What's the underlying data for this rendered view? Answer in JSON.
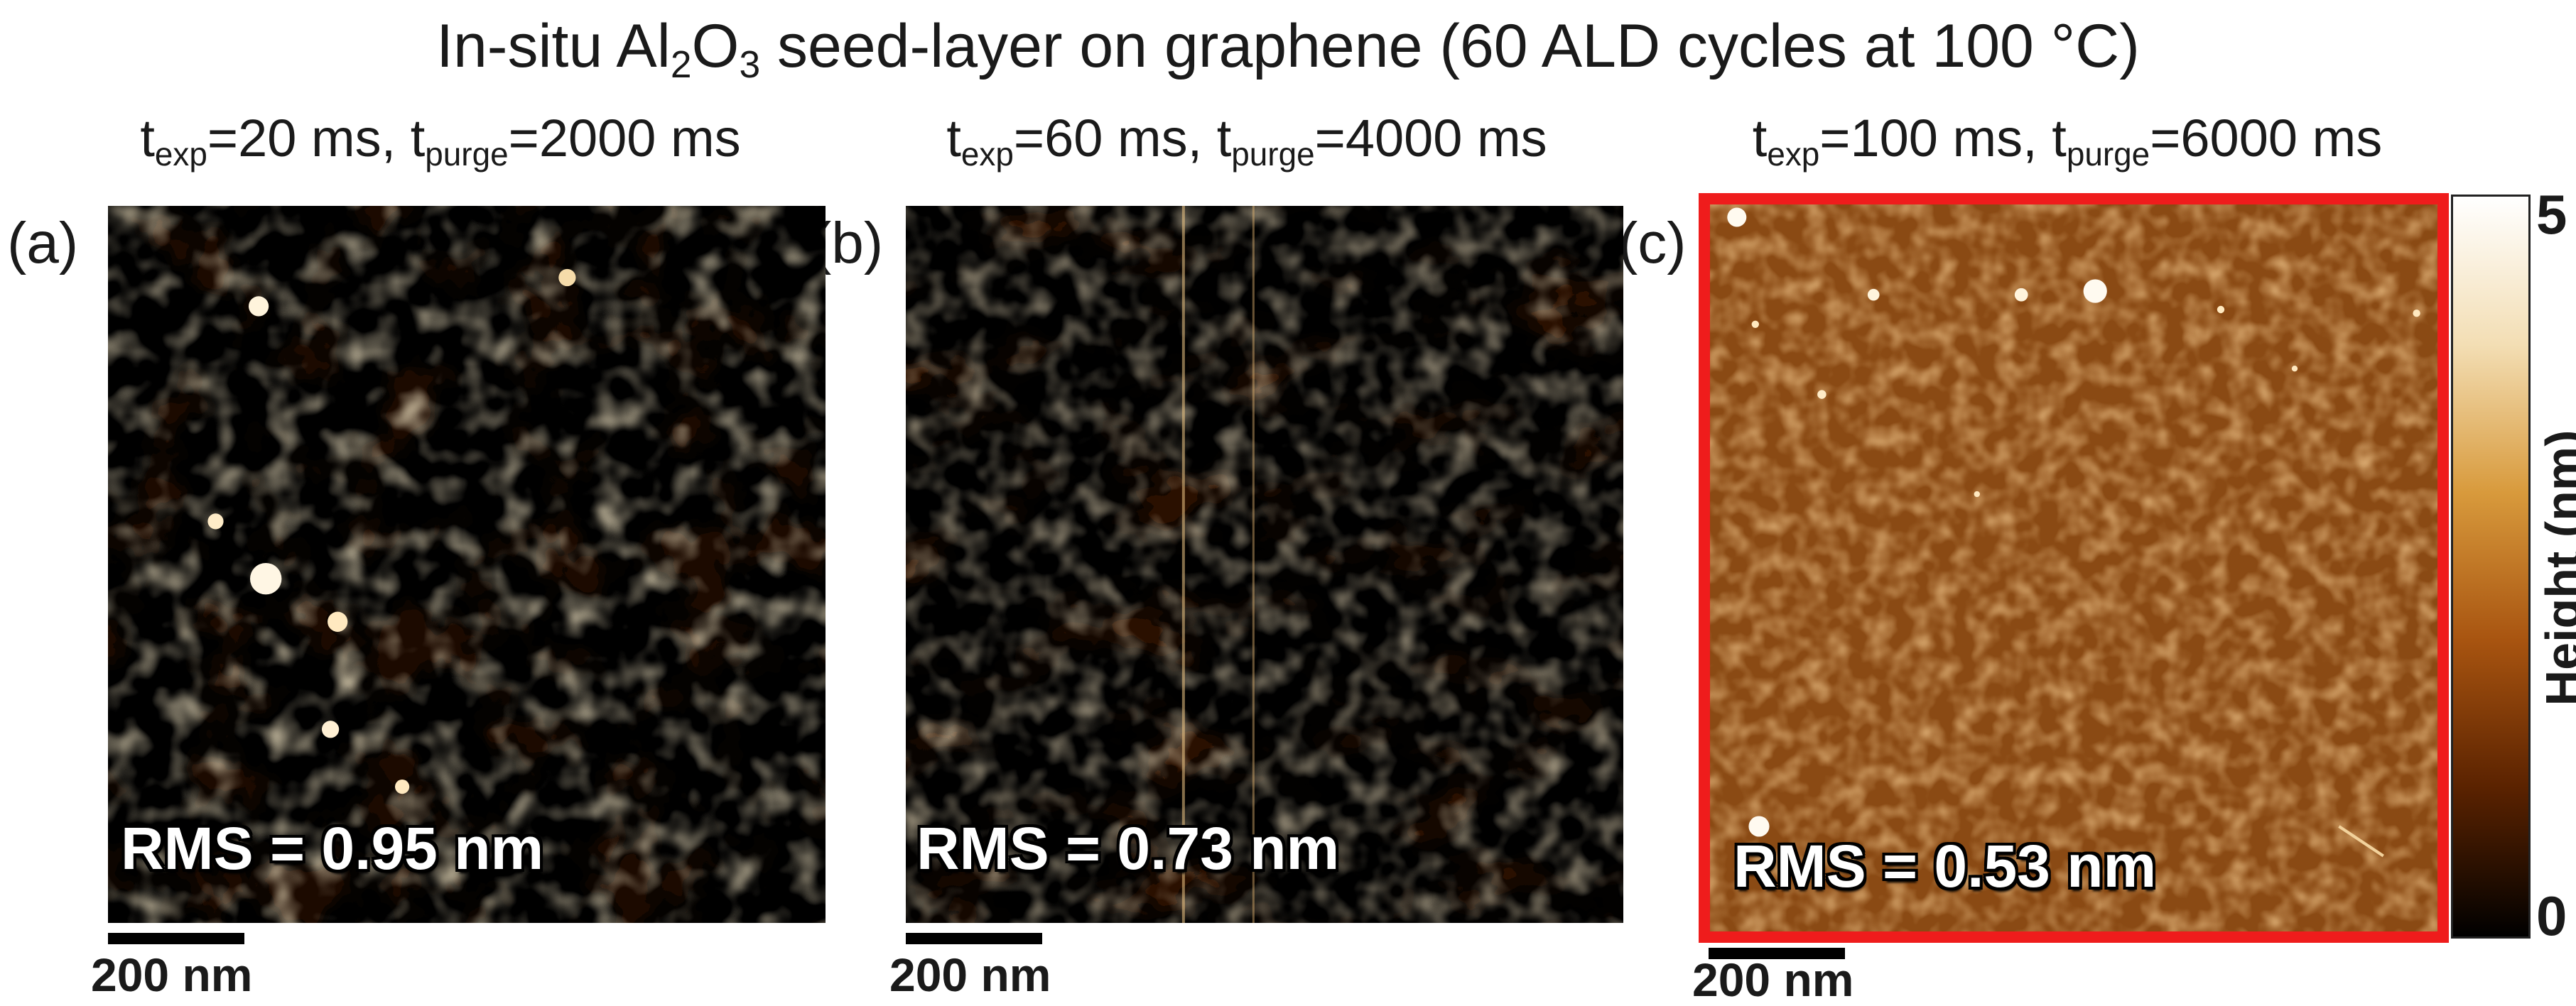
{
  "figure": {
    "title_prefix": "In-situ Al",
    "title_sub1": "2",
    "title_mid": "O",
    "title_sub2": "3",
    "title_suffix": " seed-layer on graphene (60 ALD cycles at 100 °C)"
  },
  "panels": [
    {
      "label": "(a)",
      "t_prefix": "t",
      "exp_sub": "exp",
      "exp_value": "=20 ms, t",
      "purge_sub": "purge",
      "purge_value": "=2000 ms",
      "rms": "RMS = 0.95 nm",
      "scale": "200 nm"
    },
    {
      "label": "(b)",
      "t_prefix": "t",
      "exp_sub": "exp",
      "exp_value": "=60 ms, t",
      "purge_sub": "purge",
      "purge_value": "=4000 ms",
      "rms": "RMS = 0.73 nm",
      "scale": "200 nm"
    },
    {
      "label": "(c)",
      "t_prefix": "t",
      "exp_sub": "exp",
      "exp_value": "=100 ms, t",
      "purge_sub": "purge",
      "purge_value": "=6000 ms",
      "rms": "RMS = 0.53 nm",
      "scale": "200 nm",
      "highlight_color": "#ef1c1c"
    }
  ],
  "colorbar": {
    "max": "5",
    "min": "0",
    "label": "Height (nm)",
    "colors": [
      "#000000",
      "#5a2200",
      "#a85410",
      "#d89a3c",
      "#f3deb4",
      "#ffffff"
    ]
  }
}
